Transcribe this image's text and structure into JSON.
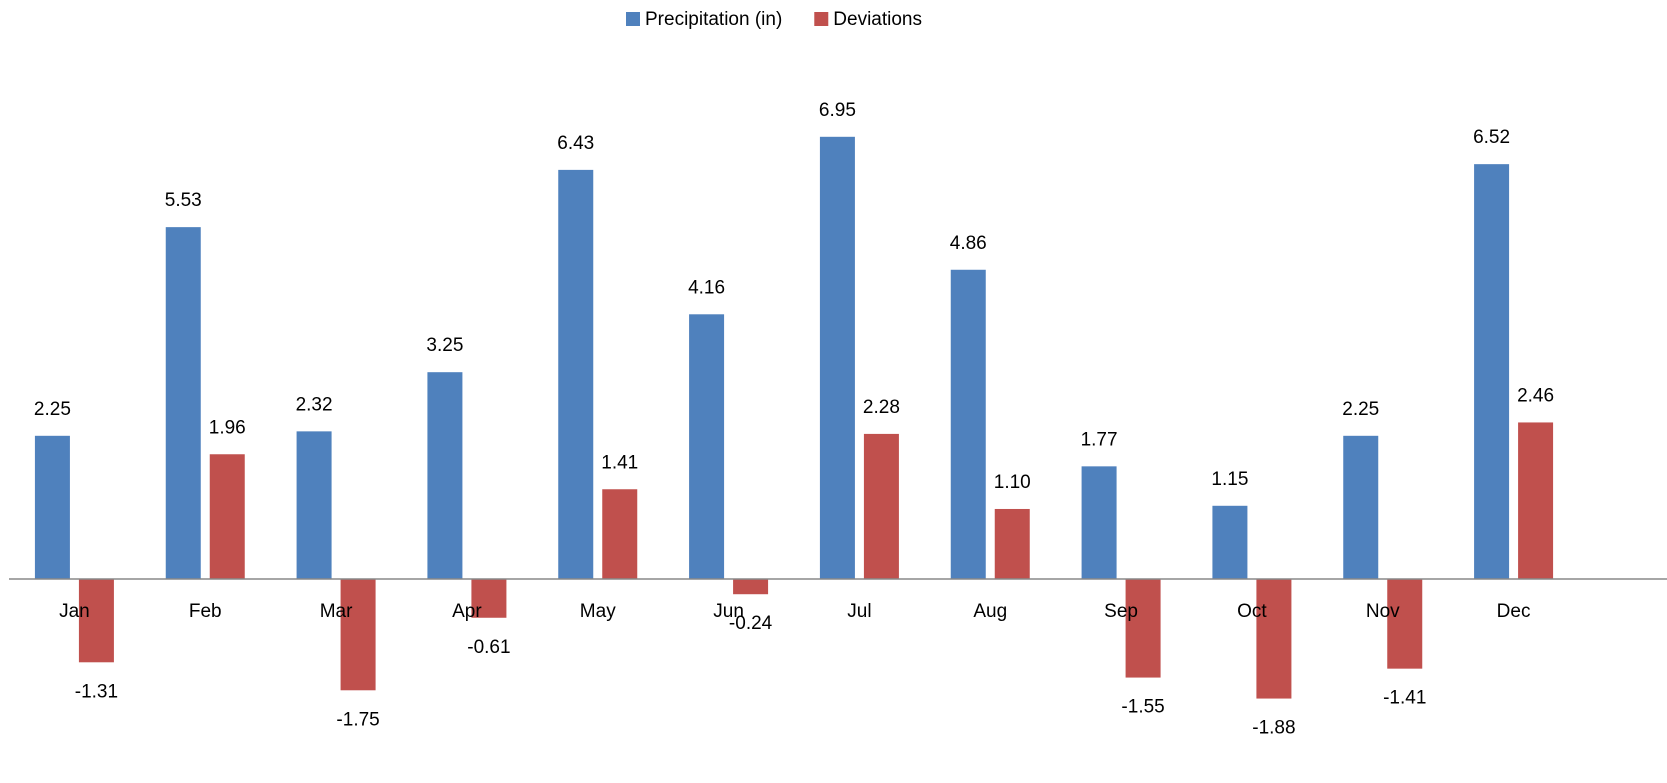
{
  "chart_data": {
    "type": "bar",
    "categories": [
      "Jan",
      "Feb",
      "Mar",
      "Apr",
      "May",
      "Jun",
      "Jul",
      "Aug",
      "Sep",
      "Oct",
      "Nov",
      "Dec"
    ],
    "series": [
      {
        "name": "Precipitation (in)",
        "color": "#4f81bd",
        "values": [
          2.25,
          5.53,
          2.32,
          3.25,
          6.43,
          4.16,
          6.95,
          4.86,
          1.77,
          1.15,
          2.25,
          6.52
        ]
      },
      {
        "name": "Deviations",
        "color": "#c0504d",
        "values": [
          -1.31,
          1.96,
          -1.75,
          -0.61,
          1.41,
          -0.24,
          2.28,
          1.1,
          -1.55,
          -1.88,
          -1.41,
          2.46
        ],
        "value_labels": [
          "-1.31",
          "1.96",
          "-1.75",
          "-0.61",
          "1.41",
          "-0.24",
          "2.28",
          "1.10",
          "-1.55",
          "-1.88",
          "-1.41",
          "2.46"
        ]
      }
    ],
    "ylim": [
      -2.5,
      8
    ],
    "legend": "top"
  }
}
